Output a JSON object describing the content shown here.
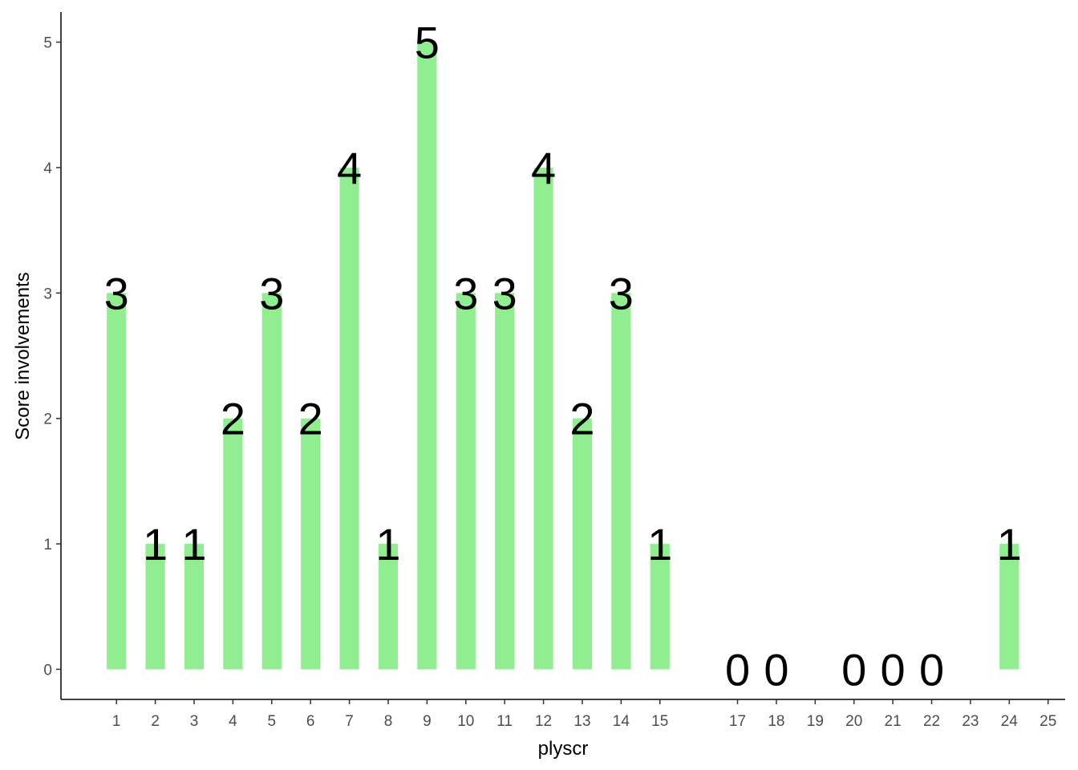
{
  "chart_data": {
    "type": "bar",
    "x_label": "plyscr",
    "y_label": "Score involvements",
    "x": [
      1,
      2,
      3,
      4,
      5,
      6,
      7,
      8,
      9,
      10,
      11,
      12,
      13,
      14,
      15,
      17,
      18,
      20,
      21,
      22,
      24
    ],
    "values": [
      3,
      1,
      1,
      2,
      3,
      2,
      4,
      1,
      5,
      3,
      3,
      4,
      2,
      3,
      1,
      0,
      0,
      0,
      0,
      0,
      1
    ],
    "color": "#90ee90",
    "xlim": [
      -0.43,
      25.44
    ],
    "xticks": [
      1,
      2,
      3,
      4,
      5,
      6,
      7,
      8,
      9,
      10,
      11,
      12,
      13,
      14,
      15,
      17,
      18,
      19,
      20,
      21,
      22,
      23,
      24,
      25
    ],
    "ylim": [
      -0.24,
      5.24
    ],
    "yticks": [
      0,
      1,
      2,
      3,
      4,
      5
    ]
  }
}
